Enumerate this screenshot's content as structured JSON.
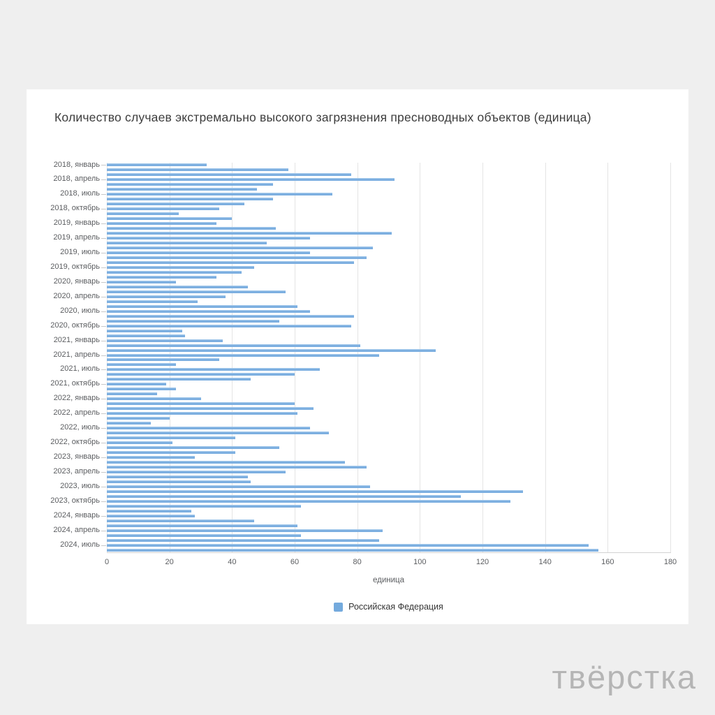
{
  "page": {
    "background": "#efefef",
    "card_background": "#ffffff"
  },
  "watermark": "твёрстка",
  "chart_data": {
    "type": "bar",
    "orientation": "horizontal",
    "title": "Количество случаев экстремально высокого загрязнения пресноводных объектов (единица)",
    "xlabel": "единица",
    "xlim": [
      0,
      180
    ],
    "x_ticks": [
      0,
      20,
      40,
      60,
      80,
      100,
      120,
      140,
      160,
      180
    ],
    "grid": true,
    "legend_position": "bottom",
    "series_name": "Российская Федерация",
    "bar_color": "#74aadd",
    "tick_labels": [
      "2018, январь",
      "2018, апрель",
      "2018, июль",
      "2018, октябрь",
      "2019, январь",
      "2019, апрель",
      "2019, июль",
      "2019, октябрь",
      "2020, январь",
      "2020, апрель",
      "2020, июль",
      "2020, октябрь",
      "2021, январь",
      "2021, апрель",
      "2021, июль",
      "2021, октябрь",
      "2022, январь",
      "2022, апрель",
      "2022, июль",
      "2022, октябрь",
      "2023, январь",
      "2023, апрель",
      "2023, июль",
      "2023, октябрь",
      "2024, январь",
      "2024, апрель",
      "2024, июль"
    ],
    "months_per_tick": 3,
    "period": "monthly, 2018-01 to 2024-08",
    "series": [
      {
        "name": "Российская Федерация",
        "values": [
          32,
          58,
          78,
          92,
          53,
          48,
          72,
          53,
          44,
          36,
          23,
          40,
          35,
          54,
          91,
          65,
          51,
          85,
          65,
          83,
          79,
          47,
          43,
          35,
          22,
          45,
          57,
          38,
          29,
          61,
          65,
          79,
          55,
          78,
          24,
          25,
          37,
          81,
          105,
          87,
          36,
          22,
          68,
          60,
          46,
          19,
          22,
          16,
          30,
          60,
          66,
          61,
          20,
          14,
          65,
          71,
          41,
          21,
          55,
          41,
          28,
          76,
          83,
          57,
          45,
          46,
          84,
          133,
          113,
          129,
          62,
          27,
          28,
          47,
          61,
          88,
          62,
          87,
          154,
          157
        ]
      }
    ]
  }
}
